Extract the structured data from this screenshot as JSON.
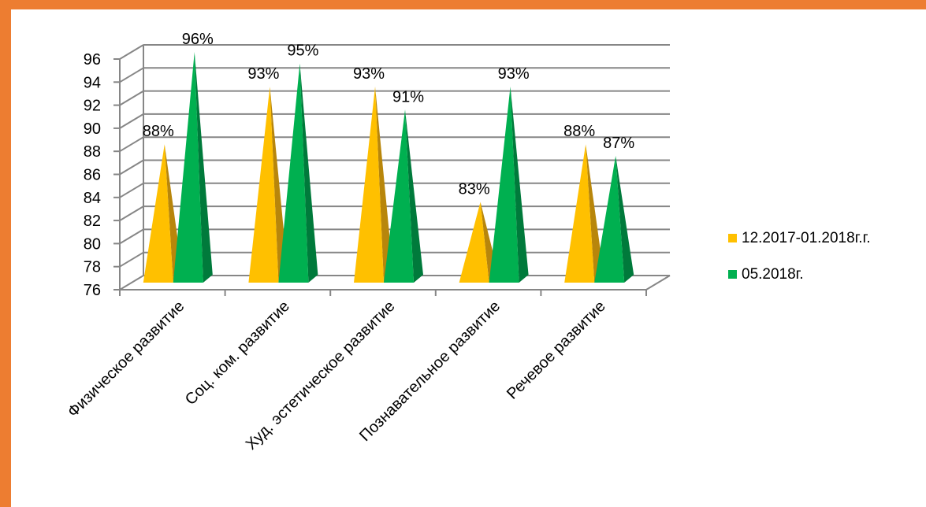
{
  "chart_data": {
    "type": "bar",
    "style": "3d-pyramid",
    "categories": [
      "Физическое развитие",
      "Соц. ком. развитие",
      "Худ. эстетическое развитие",
      "Познавательное развитие",
      "Речевое развитие"
    ],
    "series": [
      {
        "name": "12.2017-01.2018г.г.",
        "values": [
          88,
          93,
          93,
          83,
          88
        ],
        "labels": [
          "88%",
          "93%",
          "93%",
          "83%",
          "88%"
        ],
        "color": "#FFC000"
      },
      {
        "name": "05.2018г.",
        "values": [
          96,
          95,
          91,
          93,
          87
        ],
        "labels": [
          "96%",
          "95%",
          "91%",
          "93%",
          "87%"
        ],
        "color": "#00B050"
      }
    ],
    "yticks": [
      76,
      78,
      80,
      82,
      84,
      86,
      88,
      90,
      92,
      94,
      96
    ],
    "ylim": [
      76,
      96
    ],
    "grid": true,
    "legend_position": "right"
  },
  "colors": {
    "frame": "#ED7D31",
    "gold": "#FFC000",
    "gold_shade": "#B8860B",
    "green": "#00B050",
    "green_shade": "#007A3B",
    "grid": "#868686"
  }
}
